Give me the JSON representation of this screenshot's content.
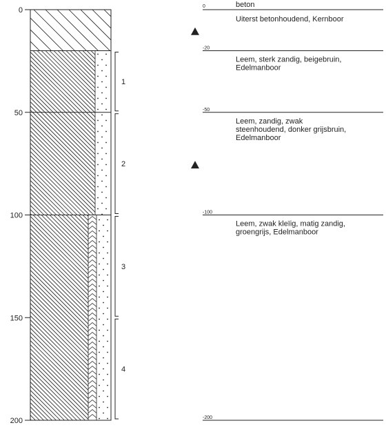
{
  "axis": {
    "ticks": [
      {
        "depth": 0,
        "label": "0"
      },
      {
        "depth": 50,
        "label": "50"
      },
      {
        "depth": 100,
        "label": "100"
      },
      {
        "depth": 150,
        "label": "150"
      },
      {
        "depth": 200,
        "label": "200"
      }
    ],
    "max_depth": 200
  },
  "column_layers": [
    {
      "top": 0,
      "bottom": 20,
      "fill": "coarse-hatch"
    },
    {
      "top": 20,
      "bottom": 50,
      "fill": "fine-hatch-sand"
    },
    {
      "top": 50,
      "bottom": 100,
      "fill": "fine-hatch-sand"
    },
    {
      "top": 100,
      "bottom": 200,
      "fill": "fine-hatch-clay-sand"
    }
  ],
  "samples": [
    {
      "label": "1",
      "top": 20,
      "bottom": 50
    },
    {
      "label": "2",
      "top": 50,
      "bottom": 100
    },
    {
      "label": "3",
      "top": 100,
      "bottom": 150
    },
    {
      "label": "4",
      "top": 150,
      "bottom": 200
    }
  ],
  "triangles": [
    {
      "depth": 10
    },
    {
      "depth": 75
    }
  ],
  "descriptions": [
    {
      "depth_label": "0",
      "depth": 0,
      "lines": [
        "beton"
      ]
    },
    {
      "depth_label": "",
      "depth": 0,
      "lines": [
        "Uiterst betonhoudend, Kernboor"
      ]
    },
    {
      "depth_label": "-20",
      "depth": 20,
      "lines": [
        "Leem, sterk zandig, beigebruin,",
        "Edelmanboor"
      ]
    },
    {
      "depth_label": "-50",
      "depth": 50,
      "lines": [
        "Leem, zandig, zwak",
        "steenhoudend, donker grijsbruin,",
        "Edelmanboor"
      ]
    },
    {
      "depth_label": "-100",
      "depth": 100,
      "lines": [
        "Leem, zwak kleïig, matig zandig,",
        "groengrijs, Edelmanboor"
      ]
    },
    {
      "depth_label": "-200",
      "depth": 200,
      "lines": []
    }
  ],
  "colors": {
    "ink": "#222222",
    "background": "#ffffff"
  }
}
